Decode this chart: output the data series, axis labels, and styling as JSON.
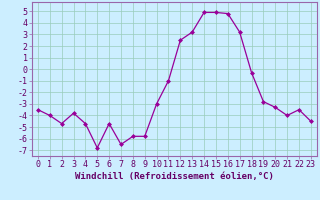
{
  "x": [
    0,
    1,
    2,
    3,
    4,
    5,
    6,
    7,
    8,
    9,
    10,
    11,
    12,
    13,
    14,
    15,
    16,
    17,
    18,
    19,
    20,
    21,
    22,
    23
  ],
  "y": [
    -3.5,
    -4.0,
    -4.7,
    -3.8,
    -4.7,
    -6.8,
    -4.7,
    -6.5,
    -5.8,
    -5.8,
    -3.0,
    -1.0,
    2.5,
    3.2,
    4.9,
    4.9,
    4.8,
    3.2,
    -0.3,
    -2.8,
    -3.3,
    -4.0,
    -3.5,
    -4.5
  ],
  "line_color": "#990099",
  "marker": "D",
  "marker_size": 2,
  "bg_color": "#cceeff",
  "grid_color": "#99ccbb",
  "xlabel": "Windchill (Refroidissement éolien,°C)",
  "ylim": [
    -7.5,
    5.8
  ],
  "xlim": [
    -0.5,
    23.5
  ],
  "xticks": [
    0,
    1,
    2,
    3,
    4,
    5,
    6,
    7,
    8,
    9,
    10,
    11,
    12,
    13,
    14,
    15,
    16,
    17,
    18,
    19,
    20,
    21,
    22,
    23
  ],
  "yticks": [
    -7,
    -6,
    -5,
    -4,
    -3,
    -2,
    -1,
    0,
    1,
    2,
    3,
    4,
    5
  ],
  "tick_color": "#660066",
  "label_color": "#660066",
  "xlabel_fontsize": 6.5,
  "tick_fontsize": 6.0,
  "spine_color": "#9966aa"
}
